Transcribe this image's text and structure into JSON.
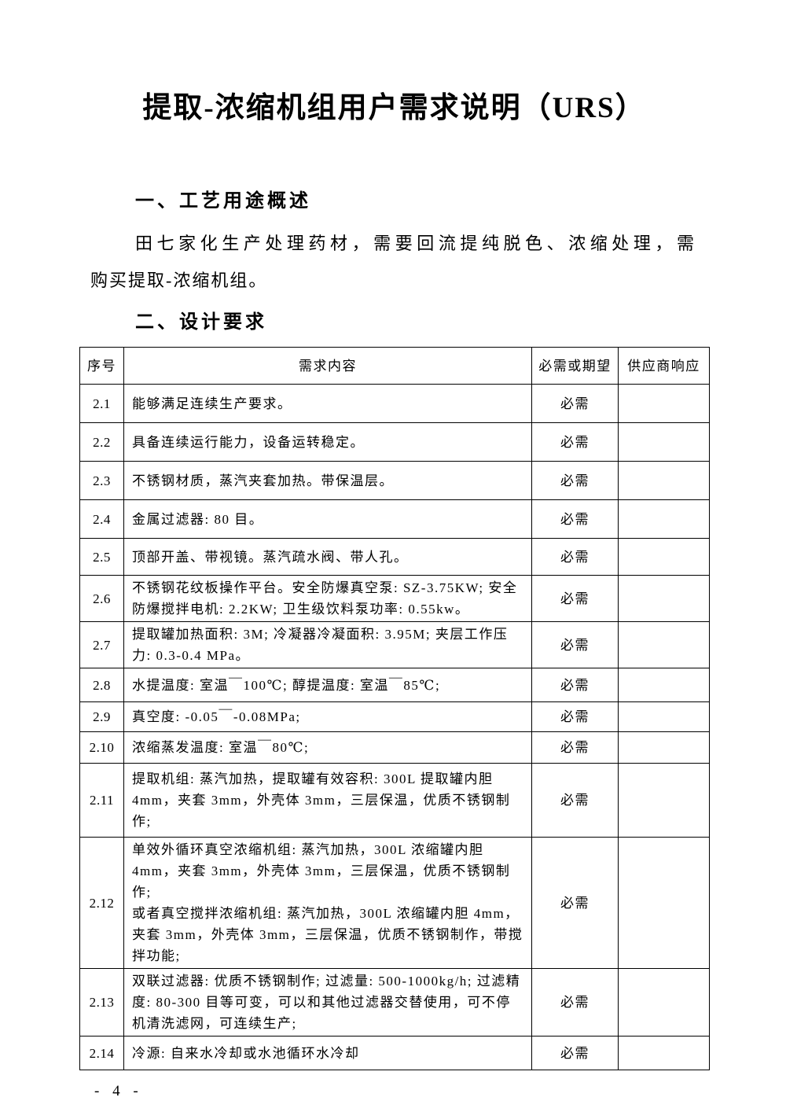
{
  "title": "提取-浓缩机组用户需求说明（URS）",
  "overview": {
    "heading": "一、工艺用途概述",
    "lines": [
      "田七家化生产处理药材，需要回流提纯脱色、浓缩处理，需",
      "购买提取-浓缩机组。"
    ]
  },
  "design": {
    "heading": "二、设计要求"
  },
  "table": {
    "headers": [
      "序号",
      "需求内容",
      "必需或期望",
      "供应商响应"
    ],
    "rows": [
      {
        "no": "2.1",
        "content": "能够满足连续生产要求。",
        "required": "必需",
        "response": ""
      },
      {
        "no": "2.2",
        "content": "具备连续运行能力，设备运转稳定。",
        "required": "必需",
        "response": ""
      },
      {
        "no": "2.3",
        "content": "不锈钢材质，蒸汽夹套加热。带保温层。",
        "required": "必需",
        "response": ""
      },
      {
        "no": "2.4",
        "content": "金属过滤器: 80 目。",
        "required": "必需",
        "response": ""
      },
      {
        "no": "2.5",
        "content": "顶部开盖、带视镜。蒸汽疏水阀、带人孔。",
        "required": "必需",
        "response": ""
      },
      {
        "no": "2.6",
        "content": "不锈钢花纹板操作平台。安全防爆真空泵: SZ-3.75KW; 安全防爆搅拌电机: 2.2KW; 卫生级饮料泵功率: 0.55kw。",
        "required": "必需",
        "response": ""
      },
      {
        "no": "2.7",
        "content": "提取罐加热面积: 3M; 冷凝器冷凝面积: 3.95M; 夹层工作压力: 0.3-0.4 MPa。",
        "required": "必需",
        "response": ""
      },
      {
        "no": "2.8",
        "content": "水提温度: 室温￣100℃; 醇提温度: 室温￣85℃;",
        "required": "必需",
        "response": ""
      },
      {
        "no": "2.9",
        "content": "真空度: -0.05￣-0.08MPa;",
        "required": "必需",
        "response": ""
      },
      {
        "no": "2.10",
        "content": "浓缩蒸发温度: 室温￣80℃;",
        "required": "必需",
        "response": ""
      },
      {
        "no": "2.11",
        "content": "提取机组: 蒸汽加热，提取罐有效容积: 300L 提取罐内胆 4mm，夹套 3mm，外壳体 3mm，三层保温，优质不锈钢制作;",
        "required": "必需",
        "response": ""
      },
      {
        "no": "2.12",
        "content": "单效外循环真空浓缩机组: 蒸汽加热，300L 浓缩罐内胆 4mm，夹套 3mm，外壳体 3mm，三层保温，优质不锈钢制作;\n或者真空搅拌浓缩机组: 蒸汽加热，300L 浓缩罐内胆 4mm，夹套 3mm，外壳体 3mm，三层保温，优质不锈钢制作，带搅拌功能;",
        "required": "必需",
        "response": ""
      },
      {
        "no": "2.13",
        "content": "双联过滤器: 优质不锈钢制作; 过滤量: 500-1000kg/h; 过滤精度: 80-300 目等可变，可以和其他过滤器交替使用，可不停机清洗滤网，可连续生产;",
        "required": "必需",
        "response": ""
      },
      {
        "no": "2.14",
        "content": "冷源: 自来水冷却或水池循环水冷却",
        "required": "必需",
        "response": ""
      }
    ]
  },
  "footer": {
    "page_number": "- 4 -"
  }
}
